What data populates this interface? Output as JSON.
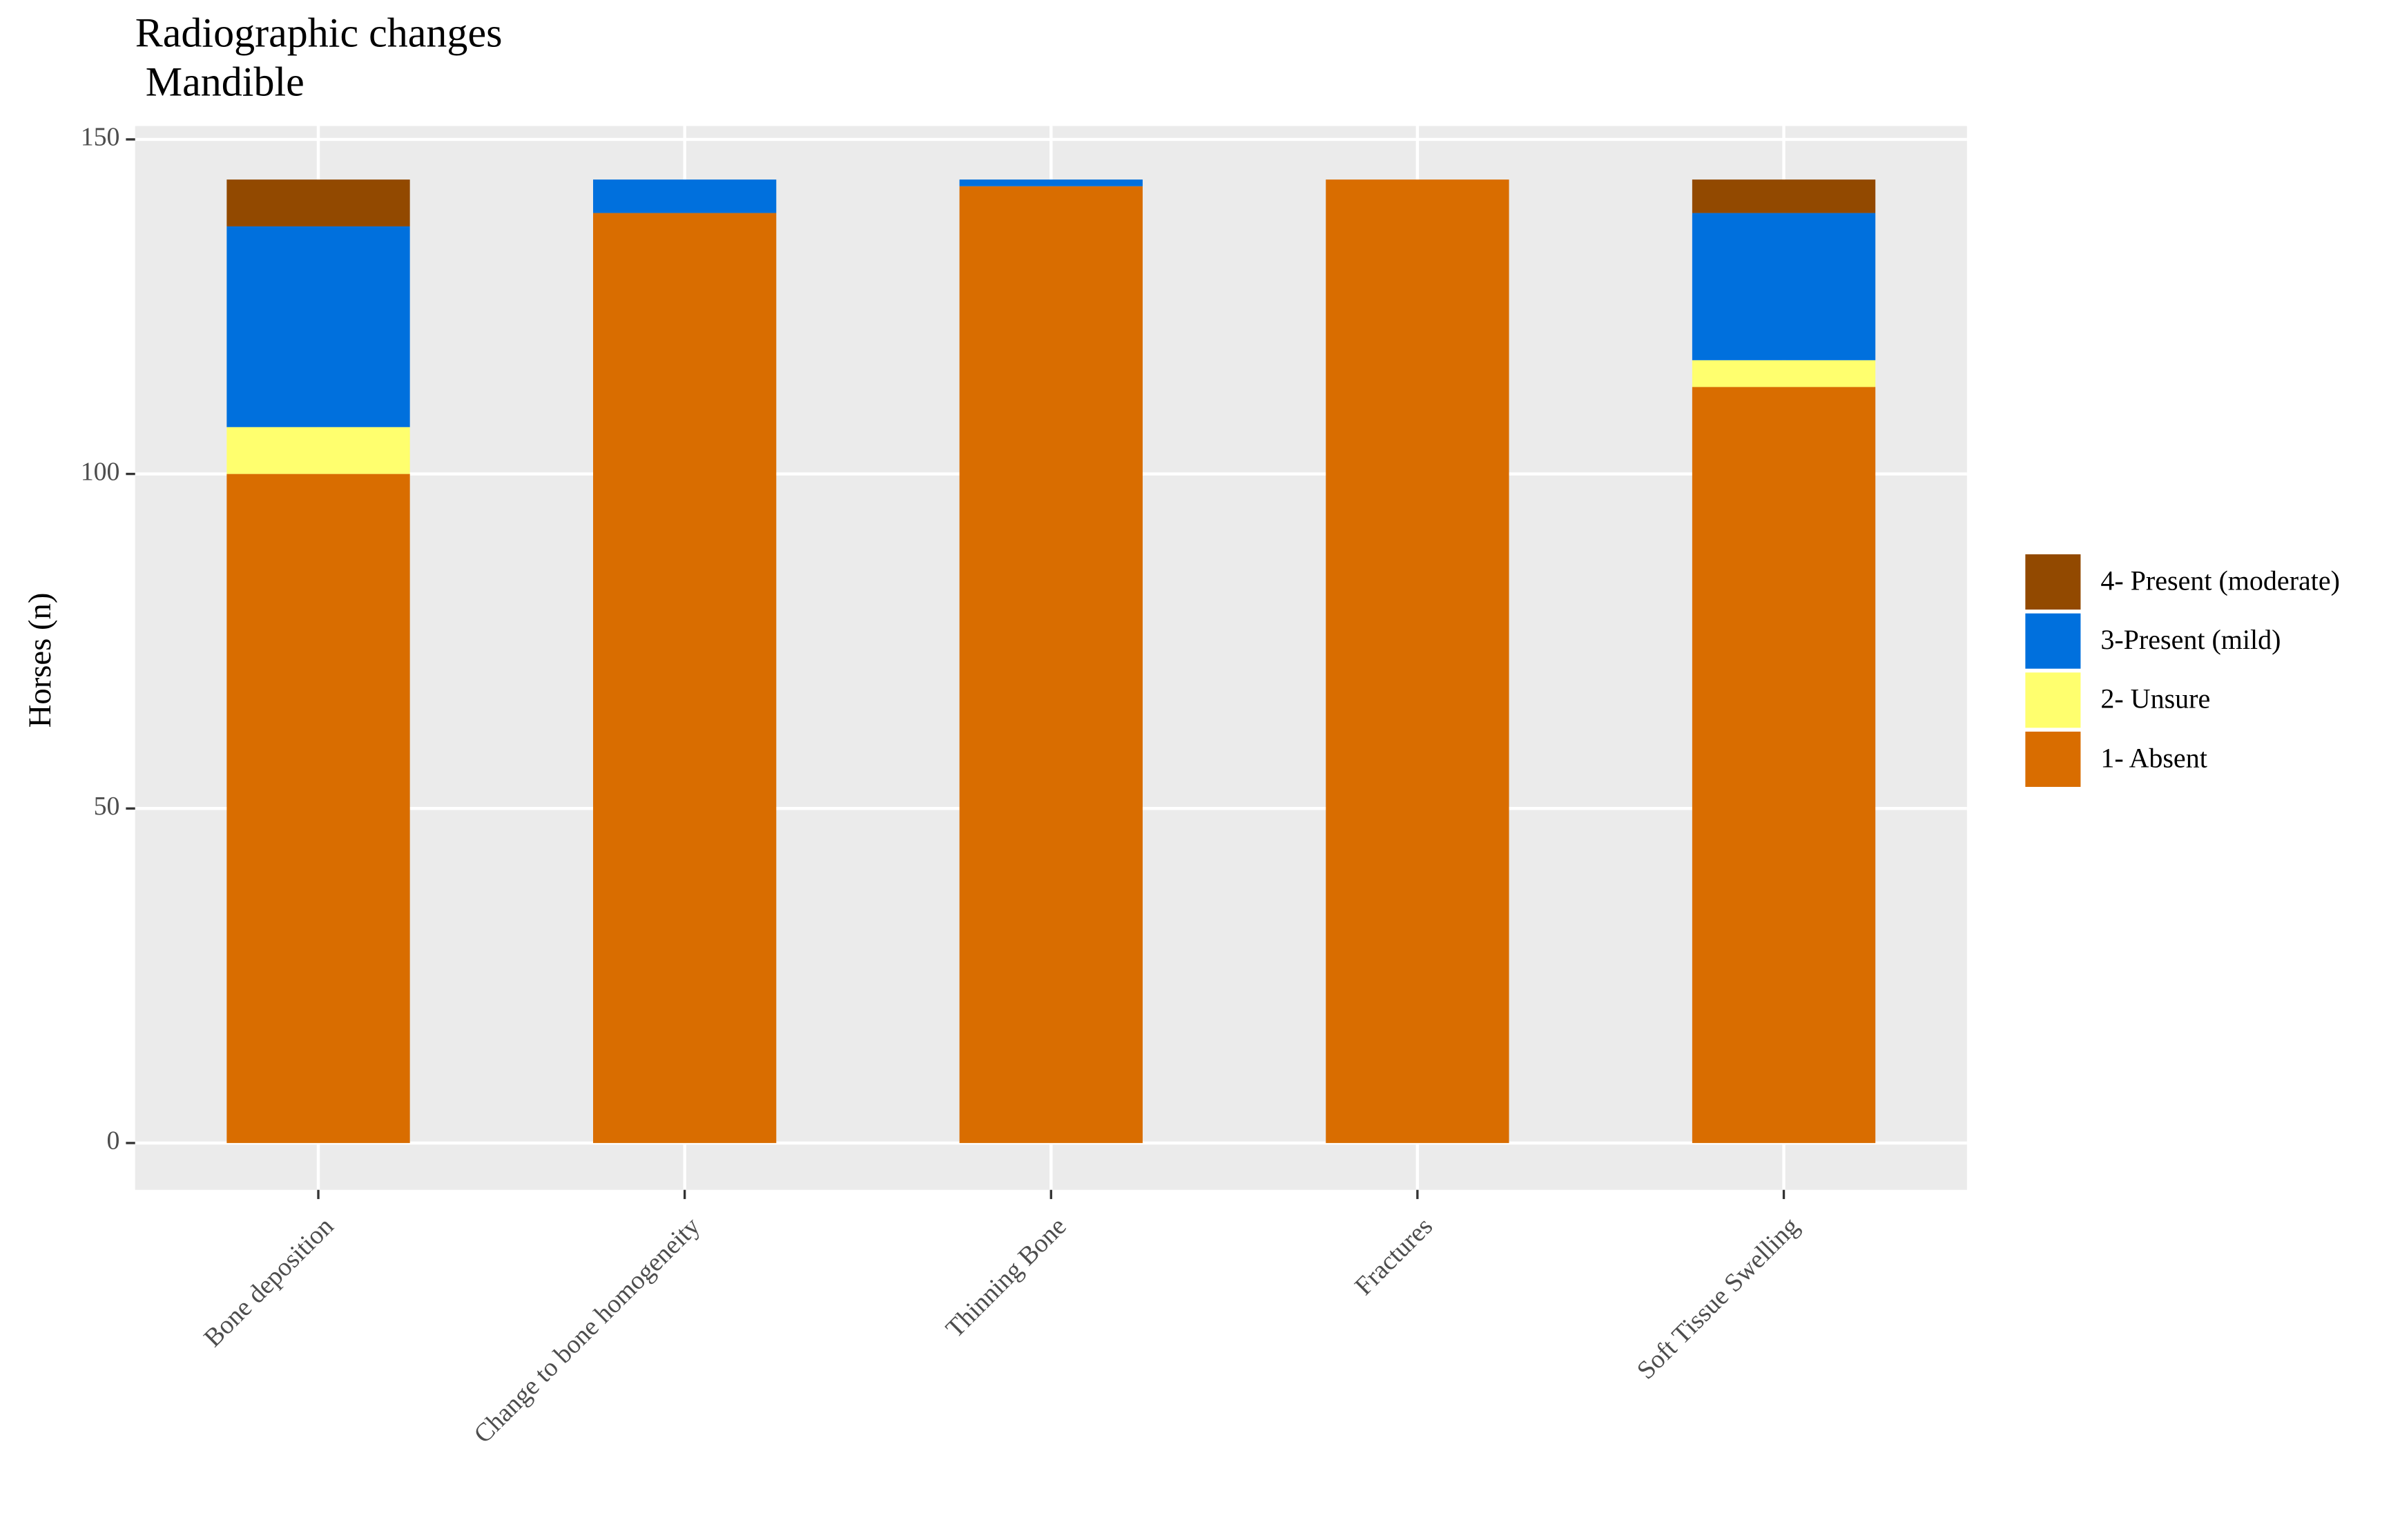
{
  "chart_data": {
    "type": "stacked-bar",
    "title": "Radiographic changes",
    "subtitle": " Mandible",
    "y_label": "Horses (n)",
    "categories": [
      "Bone deposition",
      "Change to bone homogeneity",
      "Thinning Bone",
      "Fractures",
      "Soft Tissue Swelling"
    ],
    "series": [
      {
        "name": "1- Absent",
        "color": "#d96d00",
        "values": [
          100,
          139,
          143,
          144,
          113
        ]
      },
      {
        "name": "2- Unsure",
        "color": "#ffff6e",
        "values": [
          7,
          0,
          0,
          0,
          4
        ]
      },
      {
        "name": "3-Present (mild)",
        "color": "#0070dd",
        "values": [
          30,
          5,
          1,
          0,
          22
        ]
      },
      {
        "name": "4- Present (moderate)",
        "color": "#924900",
        "values": [
          7,
          0,
          0,
          0,
          5
        ]
      }
    ],
    "ylim": [
      -7,
      152
    ],
    "yticks": [
      0,
      50,
      100,
      150
    ],
    "grid": true
  }
}
